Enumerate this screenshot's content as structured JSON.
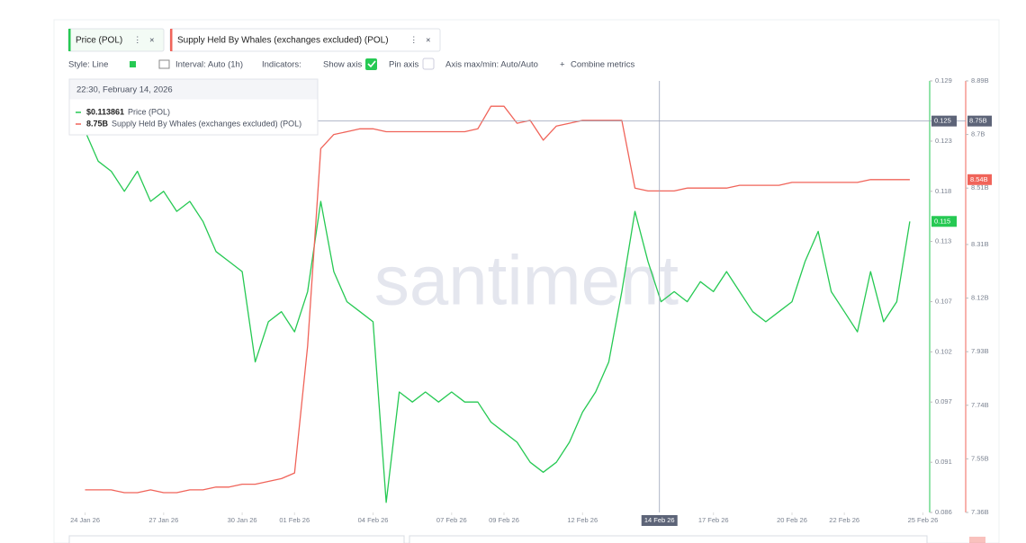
{
  "chart_data": {
    "type": "line",
    "tabs": [
      "Price (POL)",
      "Supply Held By Whales (exchanges excluded) (POL)"
    ],
    "toolbar": {
      "style": "Style: Line",
      "interval": "Interval: Auto (1h)",
      "indicators": "Indicators:",
      "show_axis": "Show axis",
      "pin_axis": "Pin axis",
      "axis_minmax": "Axis max/min: Auto/Auto",
      "combine": "Combine metrics"
    },
    "watermark": "santiment",
    "tooltip": {
      "title": "22:30, February 14, 2026",
      "items": [
        {
          "value": "$0.113861",
          "name": "Price (POL)"
        },
        {
          "value": "8.75B",
          "name": "Supply Held By Whales (exchanges excluded) (POL)"
        }
      ]
    },
    "crosshair": {
      "x": "2026-02-14T22:30",
      "x_tag": "14 Feb 26",
      "y": 0.125,
      "y_tag": "0.125",
      "y2_tag": "8.75B"
    },
    "x": [
      "2026-01-24T00:00",
      "2026-01-24T12:00",
      "2026-01-25T00:00",
      "2026-01-25T12:00",
      "2026-01-26T00:00",
      "2026-01-26T12:00",
      "2026-01-27T00:00",
      "2026-01-27T12:00",
      "2026-01-28T00:00",
      "2026-01-28T12:00",
      "2026-01-29T00:00",
      "2026-01-29T12:00",
      "2026-01-30T00:00",
      "2026-01-30T12:00",
      "2026-01-31T00:00",
      "2026-01-31T12:00",
      "2026-02-01T00:00",
      "2026-02-01T12:00",
      "2026-02-02T00:00",
      "2026-02-02T12:00",
      "2026-02-03T00:00",
      "2026-02-03T12:00",
      "2026-02-04T00:00",
      "2026-02-04T12:00",
      "2026-02-05T00:00",
      "2026-02-05T12:00",
      "2026-02-06T00:00",
      "2026-02-06T12:00",
      "2026-02-07T00:00",
      "2026-02-07T12:00",
      "2026-02-08T00:00",
      "2026-02-08T12:00",
      "2026-02-09T00:00",
      "2026-02-09T12:00",
      "2026-02-10T00:00",
      "2026-02-10T12:00",
      "2026-02-11T00:00",
      "2026-02-11T12:00",
      "2026-02-12T00:00",
      "2026-02-12T12:00",
      "2026-02-13T00:00",
      "2026-02-13T12:00",
      "2026-02-14T00:00",
      "2026-02-14T12:00",
      "2026-02-15T00:00",
      "2026-02-15T12:00",
      "2026-02-16T00:00",
      "2026-02-16T12:00",
      "2026-02-17T00:00",
      "2026-02-17T12:00",
      "2026-02-18T00:00",
      "2026-02-18T12:00",
      "2026-02-19T00:00",
      "2026-02-19T12:00",
      "2026-02-20T00:00",
      "2026-02-20T12:00",
      "2026-02-21T00:00",
      "2026-02-21T12:00",
      "2026-02-22T00:00",
      "2026-02-22T12:00",
      "2026-02-23T00:00",
      "2026-02-23T12:00",
      "2026-02-24T00:00",
      "2026-02-24T12:00"
    ],
    "xlim": [
      "2026-01-23T12:00",
      "2026-02-25T12:00"
    ],
    "xticks": [
      {
        "value": "2026-01-24T00:00",
        "label": "24 Jan 26"
      },
      {
        "value": "2026-01-27T00:00",
        "label": "27 Jan 26"
      },
      {
        "value": "2026-01-30T00:00",
        "label": "30 Jan 26"
      },
      {
        "value": "2026-02-01T00:00",
        "label": "01 Feb 26"
      },
      {
        "value": "2026-02-04T00:00",
        "label": "04 Feb 26"
      },
      {
        "value": "2026-02-07T00:00",
        "label": "07 Feb 26"
      },
      {
        "value": "2026-02-09T00:00",
        "label": "09 Feb 26"
      },
      {
        "value": "2026-02-12T00:00",
        "label": "12 Feb 26"
      },
      {
        "value": "2026-02-17T00:00",
        "label": "17 Feb 26"
      },
      {
        "value": "2026-02-20T00:00",
        "label": "20 Feb 26"
      },
      {
        "value": "2026-02-22T00:00",
        "label": "22 Feb 26"
      },
      {
        "value": "2026-02-25T00:00",
        "label": "25 Feb 26"
      }
    ],
    "ylim": [
      0.086,
      0.129
    ],
    "yticks": [
      0.086,
      0.091,
      0.097,
      0.102,
      0.107,
      0.113,
      0.118,
      0.123,
      0.129
    ],
    "y2lim": [
      7.36,
      8.89
    ],
    "y2ticks": [
      {
        "value": 7.36,
        "label": "7.36B"
      },
      {
        "value": 7.55,
        "label": "7.55B"
      },
      {
        "value": 7.74,
        "label": "7.74B"
      },
      {
        "value": 7.93,
        "label": "7.93B"
      },
      {
        "value": 8.12,
        "label": "8.12B"
      },
      {
        "value": 8.31,
        "label": "8.31B"
      },
      {
        "value": 8.51,
        "label": "8.51B"
      },
      {
        "value": 8.7,
        "label": "8.7B"
      },
      {
        "value": 8.89,
        "label": "8.89B"
      }
    ],
    "series": [
      {
        "name": "Price (POL)",
        "color": "#26c953",
        "axis": "y",
        "last_label": "0.115",
        "values": [
          0.124,
          0.121,
          0.12,
          0.118,
          0.12,
          0.117,
          0.118,
          0.116,
          0.117,
          0.115,
          0.112,
          0.111,
          0.11,
          0.101,
          0.105,
          0.106,
          0.104,
          0.108,
          0.117,
          0.11,
          0.107,
          0.106,
          0.105,
          0.087,
          0.098,
          0.097,
          0.098,
          0.097,
          0.098,
          0.097,
          0.097,
          0.095,
          0.094,
          0.093,
          0.091,
          0.09,
          0.091,
          0.093,
          0.096,
          0.098,
          0.101,
          0.108,
          0.116,
          0.111,
          0.107,
          0.108,
          0.107,
          0.109,
          0.108,
          0.11,
          0.108,
          0.106,
          0.105,
          0.106,
          0.107,
          0.111,
          0.114,
          0.108,
          0.106,
          0.104,
          0.11,
          0.105,
          0.107,
          0.115
        ]
      },
      {
        "name": "Supply Held By Whales (exchanges excluded) (POL)",
        "color": "#f0645a",
        "axis": "y2",
        "last_label": "8.54B",
        "values": [
          7.44,
          7.44,
          7.44,
          7.43,
          7.43,
          7.44,
          7.43,
          7.43,
          7.44,
          7.44,
          7.45,
          7.45,
          7.46,
          7.46,
          7.47,
          7.48,
          7.5,
          7.95,
          8.65,
          8.7,
          8.71,
          8.72,
          8.72,
          8.71,
          8.71,
          8.71,
          8.71,
          8.71,
          8.71,
          8.71,
          8.72,
          8.8,
          8.8,
          8.74,
          8.75,
          8.68,
          8.73,
          8.74,
          8.75,
          8.75,
          8.75,
          8.75,
          8.51,
          8.5,
          8.5,
          8.5,
          8.51,
          8.51,
          8.51,
          8.51,
          8.52,
          8.52,
          8.52,
          8.52,
          8.53,
          8.53,
          8.53,
          8.53,
          8.53,
          8.53,
          8.54,
          8.54,
          8.54,
          8.54
        ]
      }
    ]
  }
}
